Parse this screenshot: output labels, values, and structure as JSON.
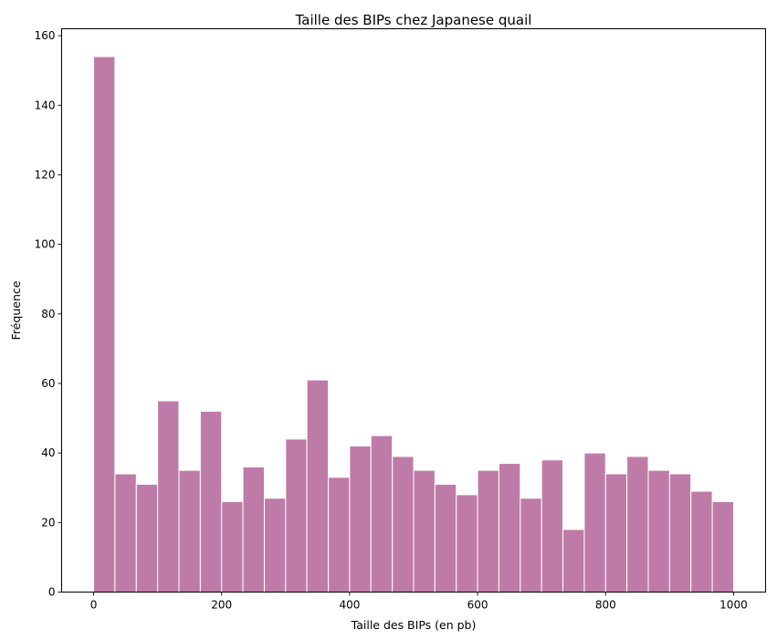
{
  "chart_data": {
    "type": "bar",
    "title": "Taille des BIPs chez Japanese quail",
    "xlabel": "Taille des BIPs (en pb)",
    "ylabel": "Fréquence",
    "bin_edges": [
      0,
      33.3,
      66.7,
      100,
      133.3,
      166.7,
      200,
      233.3,
      266.7,
      300,
      333.3,
      366.7,
      400,
      433.3,
      466.7,
      500,
      533.3,
      566.7,
      600,
      633.3,
      666.7,
      700,
      733.3,
      766.7,
      800,
      833.3,
      866.7,
      900,
      933.3,
      966.7,
      1000
    ],
    "values": [
      154,
      34,
      31,
      55,
      35,
      52,
      26,
      36,
      27,
      44,
      61,
      33,
      42,
      45,
      39,
      35,
      31,
      28,
      35,
      37,
      27,
      38,
      18,
      40,
      34,
      39,
      35,
      34,
      29,
      26
    ],
    "xlim": [
      -50,
      1050
    ],
    "ylim": [
      0,
      162
    ],
    "xticks": [
      0,
      200,
      400,
      600,
      800,
      1000
    ],
    "yticks": [
      0,
      20,
      40,
      60,
      80,
      100,
      120,
      140,
      160
    ],
    "bar_color": "#bf7ba7",
    "edge_color": "#ffffff",
    "grid": false,
    "legend": "none"
  }
}
